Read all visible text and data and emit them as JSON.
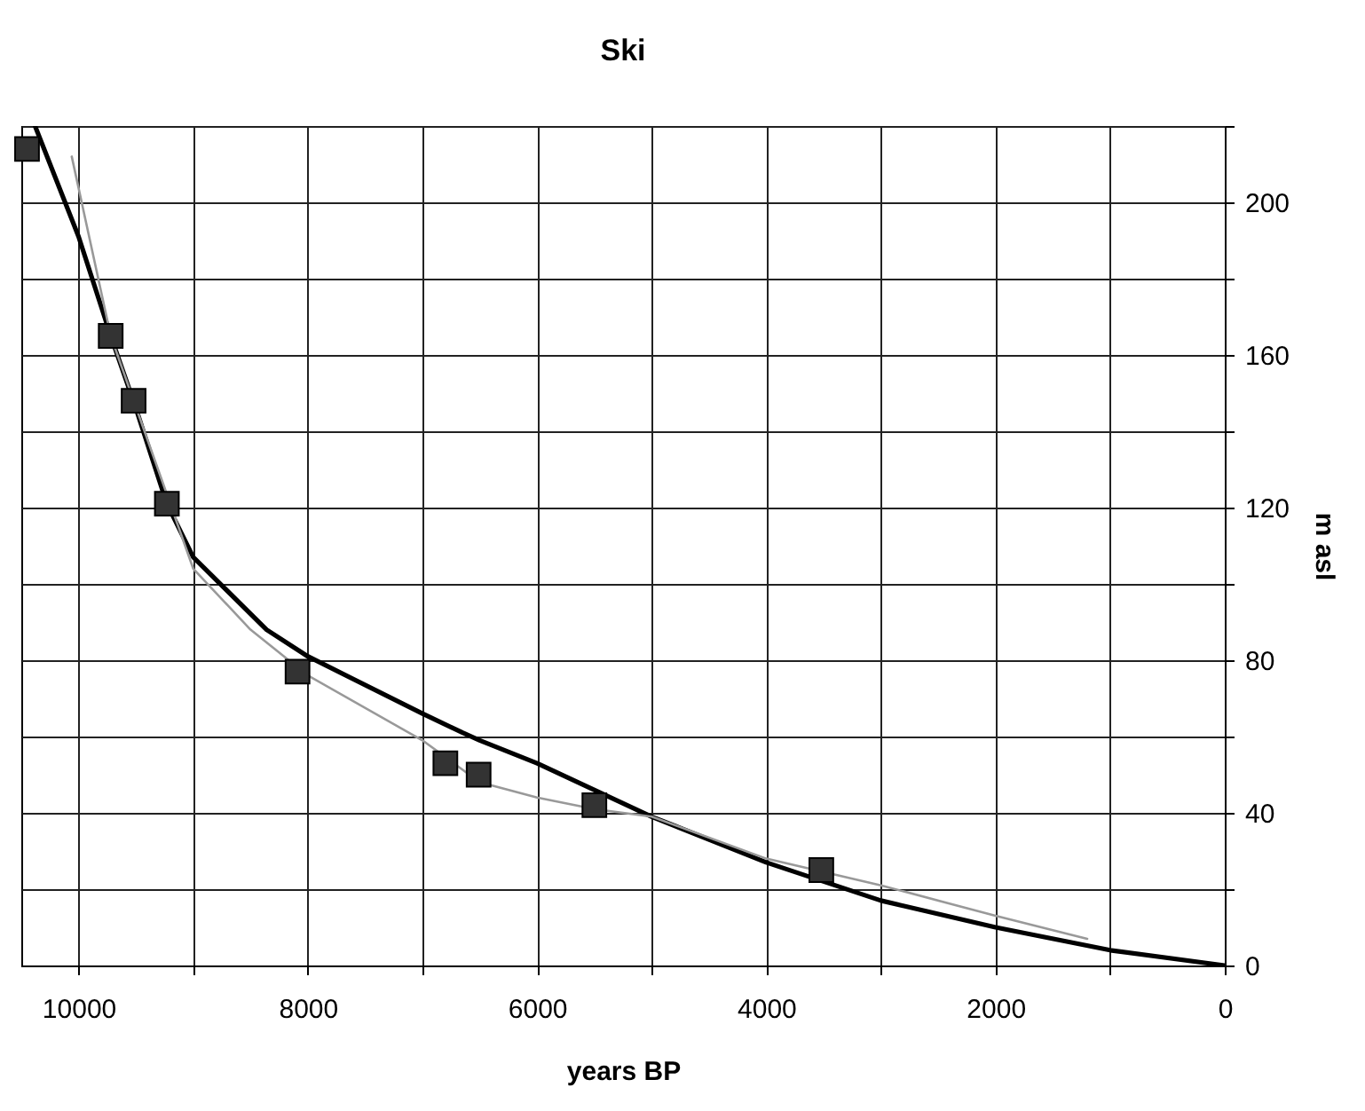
{
  "chart_data": {
    "type": "line",
    "title": "Ski",
    "xlabel": "years BP",
    "ylabel": "m asl",
    "xlim": [
      10500,
      0
    ],
    "ylim": [
      0,
      220
    ],
    "xticks": [
      10000,
      {
        "value": 9000,
        "label": null
      },
      8000,
      {
        "value": 7000,
        "label": null
      },
      6000,
      {
        "value": 5000,
        "label": null
      },
      4000,
      {
        "value": 3000,
        "label": null
      },
      2000,
      {
        "value": 1000,
        "label": null
      },
      0
    ],
    "yticks": [
      0,
      {
        "value": 20,
        "label": null
      },
      40,
      {
        "value": 60,
        "label": null
      },
      80,
      {
        "value": 100,
        "label": null
      },
      120,
      {
        "value": 140,
        "label": null
      },
      160,
      {
        "value": 180,
        "label": null
      },
      200,
      {
        "value": 220,
        "label": null
      }
    ],
    "grid": true,
    "line_style": "solid",
    "series": [
      {
        "type": "line",
        "color": "#000000",
        "marker": "none",
        "x": [
          10380,
          10000,
          9720,
          9500,
          9230,
          9000,
          8360,
          8000,
          7000,
          6650,
          6500,
          6000,
          5000,
          4000,
          3000,
          2000,
          1000,
          0
        ],
        "values": [
          220,
          191,
          165,
          146,
          121,
          107,
          88,
          81,
          66,
          61,
          59,
          53,
          39,
          27,
          17,
          10,
          4,
          0
        ]
      },
      {
        "type": "line",
        "color": "#999999",
        "marker": "none",
        "x": [
          10060,
          9720,
          9000,
          8500,
          8000,
          7000,
          6500,
          6000,
          5500,
          5000,
          4000,
          3000,
          2000,
          1200
        ],
        "values": [
          212,
          165,
          104,
          88,
          76,
          59,
          48,
          44,
          41,
          39,
          28,
          21,
          13,
          7
        ]
      },
      {
        "type": "scatter",
        "color": "#333333",
        "marker": "square",
        "x": [
          10450,
          9720,
          9520,
          9230,
          8090,
          6800,
          6510,
          5500,
          3520
        ],
        "values": [
          214,
          165,
          148,
          121,
          77,
          53,
          50,
          42,
          25
        ]
      }
    ]
  }
}
